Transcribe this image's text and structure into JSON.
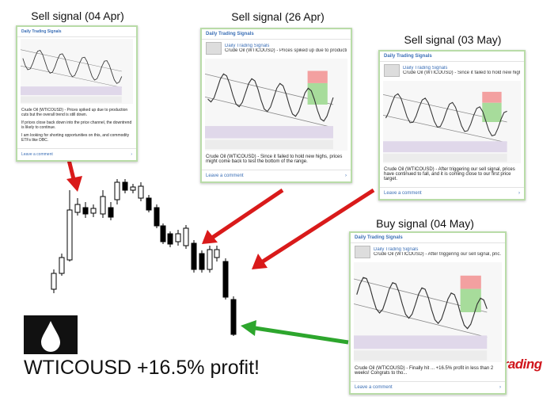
{
  "title": "WTICOUSD +16.5% profit!",
  "logo": "synapsetrading",
  "signals": [
    {
      "label": "Sell signal (04 Apr)",
      "header": "Daily Trading Signals",
      "body": [
        "Crude Oil (WTICOUSD) - Prices spiked up due to production cuts but the overall trend is still down.",
        "If prices close back down into the price channel, the downtrend is likely to continue.",
        "I am looking for shorting opportunities on this, and commodity ETFs like DBC."
      ],
      "action": "Leave a comment"
    },
    {
      "label": "Sell signal (26 Apr)",
      "header": "Daily Trading Signals",
      "post_name": "Daily Trading Signals",
      "post_text": "Crude Oil (WTICOUSD) - Prices spiked up due to productio...",
      "body": [
        "Crude Oil (WTICOUSD) - Since it failed to hold new highs, prices might come back to test the bottom of the range."
      ],
      "action": "Leave a comment"
    },
    {
      "label": "Sell signal (03 May)",
      "header": "Daily Trading Signals",
      "post_name": "Daily Trading Signals",
      "post_text": "Crude Oil (WTICOUSD) - Since it failed to hold new highs, p...",
      "body": [
        "Crude Oil (WTICOUSD) - After triggering our sell signal, prices have continued to fall, and it is coming close to our first price target."
      ],
      "action": "Leave a comment"
    },
    {
      "label": "Buy signal (04 May)",
      "header": "Daily Trading Signals",
      "post_name": "Daily Trading Signals",
      "post_text": "Crude Oil (WTICOUSD) - After triggering our sell signal, pric...",
      "body": [
        "Crude Oil (WTICOUSD) - Finally hit ... +16.5% profit in less than 2 weeks! Congrats to tho..."
      ],
      "action": "Leave a comment"
    }
  ]
}
